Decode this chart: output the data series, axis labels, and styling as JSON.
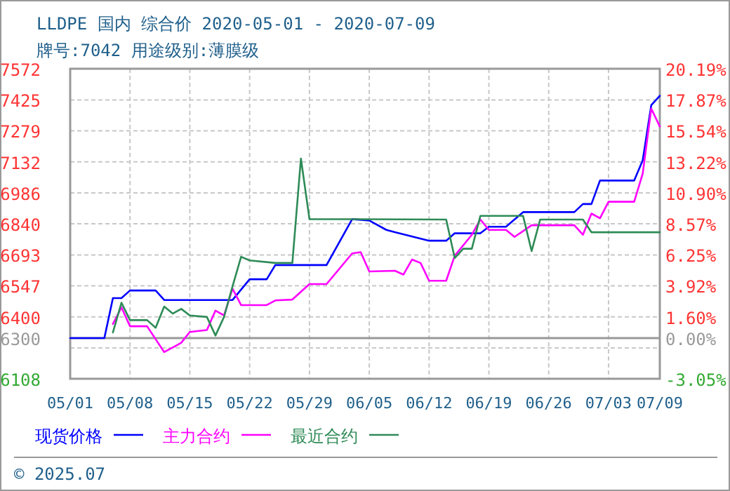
{
  "chart_data": {
    "type": "line",
    "title": "LLDPE 国内 综合价 2020-05-01 - 2020-07-09",
    "subtitle": "牌号:7042 用途级别:薄膜级",
    "annotations": [
      "© 2025.07"
    ],
    "xlim": [
      "2020-05-01",
      "2020-07-09"
    ],
    "xticks": [
      {
        "value": "2020-05-01",
        "label": "05/01"
      },
      {
        "value": "2020-05-08",
        "label": "05/08"
      },
      {
        "value": "2020-05-15",
        "label": "05/15"
      },
      {
        "value": "2020-05-22",
        "label": "05/22"
      },
      {
        "value": "2020-05-29",
        "label": "05/29"
      },
      {
        "value": "2020-06-05",
        "label": "06/05"
      },
      {
        "value": "2020-06-12",
        "label": "06/12"
      },
      {
        "value": "2020-06-19",
        "label": "06/19"
      },
      {
        "value": "2020-06-26",
        "label": "06/26"
      },
      {
        "value": "2020-07-03",
        "label": "07/03"
      },
      {
        "value": "2020-07-09",
        "label": "07/09"
      }
    ],
    "ylim": [
      6108,
      7572
    ],
    "yticks": [
      7572,
      7425,
      7279,
      7132,
      6986,
      6840,
      6693,
      6547,
      6400,
      6300,
      {
        "value": 6254,
        "label": null
      },
      6108
    ],
    "y2lim": [
      -3.05,
      20.19
    ],
    "y2ticks": [
      {
        "value": 20.19,
        "label": "20.19%"
      },
      {
        "value": 17.87,
        "label": "17.87%"
      },
      {
        "value": 15.54,
        "label": "15.54%"
      },
      {
        "value": 13.22,
        "label": "13.22%"
      },
      {
        "value": 10.9,
        "label": "10.90%"
      },
      {
        "value": 8.57,
        "label": "8.57%"
      },
      {
        "value": 6.25,
        "label": "6.25%"
      },
      {
        "value": 3.92,
        "label": "3.92%"
      },
      {
        "value": 1.6,
        "label": "1.60%"
      },
      {
        "value": 0,
        "label": "0.00%"
      },
      {
        "value": -3.05,
        "label": "-3.05%"
      }
    ],
    "ref_lines": [
      {
        "axis": "y",
        "value": 6300,
        "color": "#999999"
      }
    ],
    "grid": true,
    "legend": "bottom",
    "line_style": "solid",
    "series": [
      {
        "name": "现货价格",
        "color": "#0000ff",
        "x": [
          "2020-05-01",
          "2020-05-05",
          "2020-05-06",
          "2020-05-07",
          "2020-05-08",
          "2020-05-11",
          "2020-05-12",
          "2020-05-20",
          "2020-05-22",
          "2020-05-24",
          "2020-05-25",
          "2020-05-31",
          "2020-06-03",
          "2020-06-05",
          "2020-06-07",
          "2020-06-08",
          "2020-06-12",
          "2020-06-14",
          "2020-06-15",
          "2020-06-18",
          "2020-06-19",
          "2020-06-21",
          "2020-06-23",
          "2020-06-29",
          "2020-06-30",
          "2020-07-01",
          "2020-07-02",
          "2020-07-06",
          "2020-07-07",
          "2020-07-08",
          "2020-07-09"
        ],
        "values": [
          6300,
          6300,
          6489,
          6489,
          6525,
          6525,
          6480,
          6480,
          6578,
          6578,
          6645,
          6645,
          6862,
          6855,
          6811,
          6800,
          6760,
          6760,
          6795,
          6795,
          6826,
          6826,
          6895,
          6895,
          6933,
          6933,
          7044,
          7044,
          7140,
          7400,
          7444
        ]
      },
      {
        "name": "主力合约",
        "color": "#ff00ff",
        "x": [
          "2020-05-06",
          "2020-05-07",
          "2020-05-08",
          "2020-05-10",
          "2020-05-12",
          "2020-05-13",
          "2020-05-14",
          "2020-05-15",
          "2020-05-17",
          "2020-05-18",
          "2020-05-19",
          "2020-05-20",
          "2020-05-21",
          "2020-05-24",
          "2020-05-25",
          "2020-05-27",
          "2020-05-29",
          "2020-05-31",
          "2020-06-03",
          "2020-06-04",
          "2020-06-05",
          "2020-06-08",
          "2020-06-09",
          "2020-06-10",
          "2020-06-11",
          "2020-06-12",
          "2020-06-14",
          "2020-06-15",
          "2020-06-17",
          "2020-06-18",
          "2020-06-19",
          "2020-06-21",
          "2020-06-22",
          "2020-06-24",
          "2020-06-29",
          "2020-06-30",
          "2020-07-01",
          "2020-07-02",
          "2020-07-03",
          "2020-07-06",
          "2020-07-07",
          "2020-07-08",
          "2020-07-09"
        ],
        "values": [
          6367,
          6445,
          6356,
          6356,
          6234,
          6256,
          6278,
          6329,
          6338,
          6430,
          6407,
          6533,
          6456,
          6456,
          6478,
          6482,
          6555,
          6555,
          6700,
          6706,
          6615,
          6618,
          6600,
          6671,
          6655,
          6571,
          6571,
          6689,
          6788,
          6860,
          6811,
          6811,
          6778,
          6833,
          6833,
          6788,
          6888,
          6866,
          6944,
          6944,
          7077,
          7384,
          7299
        ]
      },
      {
        "name": "最近合约",
        "color": "#2e8b57",
        "x": [
          "2020-05-06",
          "2020-05-07",
          "2020-05-08",
          "2020-05-10",
          "2020-05-11",
          "2020-05-12",
          "2020-05-13",
          "2020-05-14",
          "2020-05-15",
          "2020-05-17",
          "2020-05-18",
          "2020-05-19",
          "2020-05-20",
          "2020-05-21",
          "2020-05-22",
          "2020-05-25",
          "2020-05-27",
          "2020-05-28",
          "2020-05-29",
          "2020-06-14",
          "2020-06-15",
          "2020-06-16",
          "2020-06-17",
          "2020-06-18",
          "2020-06-23",
          "2020-06-24",
          "2020-06-25",
          "2020-06-30",
          "2020-07-01",
          "2020-07-09"
        ],
        "values": [
          6327,
          6467,
          6385,
          6385,
          6349,
          6449,
          6416,
          6438,
          6407,
          6400,
          6312,
          6400,
          6545,
          6684,
          6667,
          6655,
          6655,
          7148,
          6862,
          6860,
          6678,
          6722,
          6722,
          6877,
          6877,
          6711,
          6860,
          6860,
          6800,
          6800
        ]
      }
    ]
  }
}
